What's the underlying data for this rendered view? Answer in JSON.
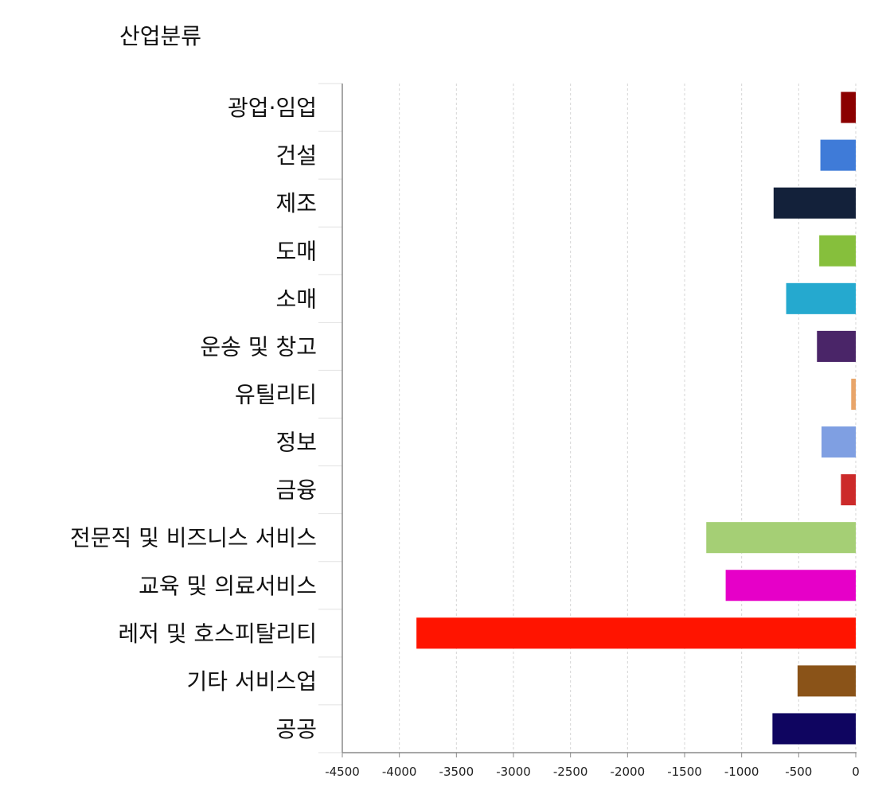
{
  "chart_data": {
    "type": "bar",
    "orientation": "horizontal",
    "title": "산업분류",
    "xlabel": "",
    "ylabel": "",
    "xlim": [
      -4500,
      0
    ],
    "xticks": [
      -4500,
      -4000,
      -3500,
      -3000,
      -2500,
      -2000,
      -1500,
      -1000,
      -500,
      0
    ],
    "grid": "vertical-dashed",
    "categories": [
      "광업·임업",
      "건설",
      "제조",
      "도매",
      "소매",
      "운송 및 창고",
      "유틸리티",
      "정보",
      "금융",
      "전문직 및 비즈니스 서비스",
      "교육 및 의료서비스",
      "레저 및 호스피탈리티",
      "기타 서비스업",
      "공공"
    ],
    "values": [
      -130,
      -310,
      -720,
      -320,
      -610,
      -340,
      -40,
      -300,
      -130,
      -1310,
      -1140,
      -3850,
      -510,
      -730
    ],
    "colors": [
      "#8b0000",
      "#3f7bd8",
      "#13213a",
      "#86bf3c",
      "#25a9cf",
      "#4a2568",
      "#e8a56a",
      "#7f9fe2",
      "#cc2a2a",
      "#a5cf75",
      "#e600c8",
      "#ff1400",
      "#8a5318",
      "#0f0560"
    ]
  }
}
